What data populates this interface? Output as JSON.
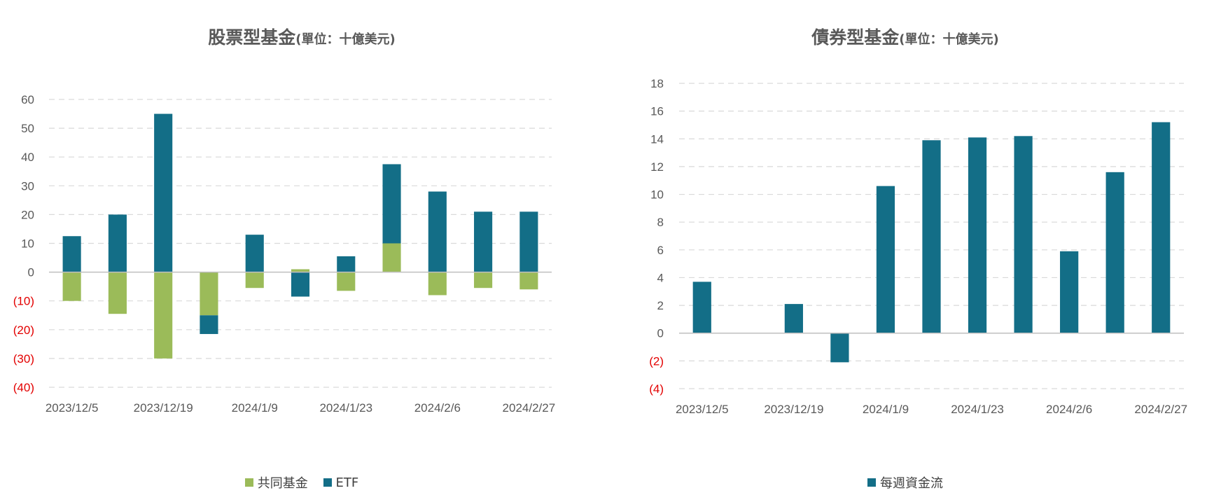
{
  "charts": {
    "equity": {
      "title": "股票型基金",
      "unit": "(單位：十億美元)",
      "legend": [
        {
          "label": "共同基金",
          "color": "#9bbb59"
        },
        {
          "label": "ETF",
          "color": "#136e87"
        }
      ]
    },
    "bond": {
      "title": "債券型基金",
      "unit": "(單位：十億美元)",
      "legend": [
        {
          "label": "每週資金流",
          "color": "#136e87"
        }
      ]
    }
  },
  "chart_data": [
    {
      "type": "bar",
      "stacked": true,
      "title": "股票型基金(單位：十億美元)",
      "categories": [
        "2023/12/5",
        "2023/12/12",
        "2023/12/19",
        "2023/12/26",
        "2024/1/9",
        "2024/1/16",
        "2024/1/23",
        "2024/1/30",
        "2024/2/6",
        "2024/2/13",
        "2024/2/27"
      ],
      "xtick_labels": [
        "2023/12/5",
        "2023/12/19",
        "2024/1/9",
        "2024/1/23",
        "2024/2/6",
        "2024/2/27"
      ],
      "series": [
        {
          "name": "共同基金",
          "color": "#9bbb59",
          "values": [
            -10,
            -14.5,
            -30,
            -15,
            -5.5,
            1,
            -6.5,
            10,
            -8,
            -5.5,
            -6
          ]
        },
        {
          "name": "ETF",
          "color": "#136e87",
          "values": [
            12.5,
            20,
            55,
            -6.5,
            13,
            -8.5,
            5.5,
            27.5,
            28,
            21,
            21
          ]
        }
      ],
      "ylim": [
        -40,
        60
      ],
      "yticks": [
        "60",
        "50",
        "40",
        "30",
        "20",
        "10",
        "0",
        "(10)",
        "(20)",
        "(30)",
        "(40)"
      ],
      "grid": true,
      "legend_position": "bottom"
    },
    {
      "type": "bar",
      "title": "債券型基金(單位：十億美元)",
      "categories": [
        "2023/12/5",
        "2023/12/12",
        "2023/12/19",
        "2023/12/26",
        "2024/1/9",
        "2024/1/16",
        "2024/1/23",
        "2024/1/30",
        "2024/2/6",
        "2024/2/13",
        "2024/2/27"
      ],
      "xtick_labels": [
        "2023/12/5",
        "2023/12/19",
        "2024/1/9",
        "2024/1/23",
        "2024/2/6",
        "2024/2/27"
      ],
      "series": [
        {
          "name": "每週資金流",
          "color": "#136e87",
          "values": [
            3.7,
            0,
            2.1,
            -2.1,
            10.6,
            13.9,
            14.1,
            14.2,
            5.9,
            11.6,
            15.2
          ]
        }
      ],
      "ylim": [
        -4,
        18
      ],
      "yticks": [
        "18",
        "16",
        "14",
        "12",
        "10",
        "8",
        "6",
        "4",
        "2",
        "0",
        "(2)",
        "(4)"
      ],
      "grid": true,
      "legend_position": "bottom"
    }
  ]
}
